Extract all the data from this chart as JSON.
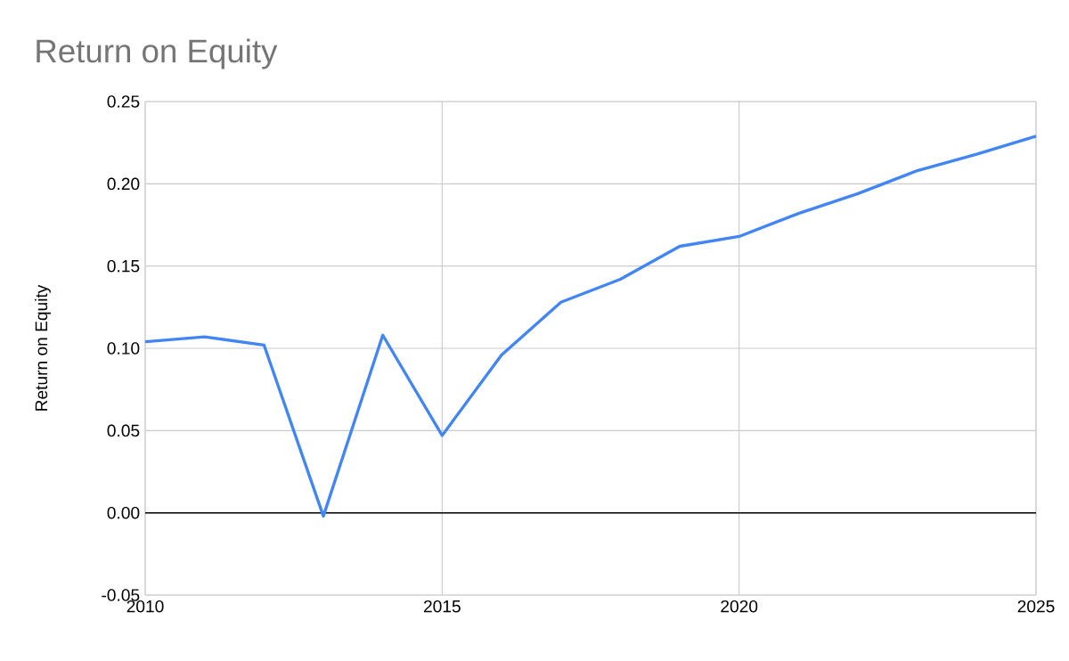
{
  "chart_data": {
    "type": "line",
    "title": "Return on Equity",
    "ylabel": "Return on Equity",
    "x": [
      2010,
      2011,
      2012,
      2013,
      2014,
      2015,
      2016,
      2017,
      2018,
      2019,
      2020,
      2021,
      2022,
      2023,
      2024,
      2025
    ],
    "series": [
      {
        "color": "#4285f4",
        "values": [
          0.104,
          0.107,
          0.102,
          -0.002,
          0.108,
          0.047,
          0.096,
          0.128,
          0.142,
          0.162,
          0.168,
          0.182,
          0.194,
          0.208,
          0.218,
          0.229
        ]
      }
    ],
    "xlim": [
      2010,
      2025
    ],
    "xticks": [
      2010,
      2015,
      2020,
      2025
    ],
    "ylim": [
      -0.05,
      0.25
    ],
    "yticks": [
      {
        "value": -0.05,
        "label": "-0.05"
      },
      {
        "value": 0,
        "label": "0.00"
      },
      {
        "value": 0.05,
        "label": "0.05"
      },
      {
        "value": 0.1,
        "label": "0.10"
      },
      {
        "value": 0.15,
        "label": "0.15"
      },
      {
        "value": 0.2,
        "label": "0.20"
      },
      {
        "value": 0.25,
        "label": "0.25"
      }
    ],
    "grid": true,
    "marker": "none",
    "line_style": "solid",
    "ref_lines": [
      {
        "axis": "y",
        "value": 0,
        "color": "#000000"
      }
    ]
  }
}
